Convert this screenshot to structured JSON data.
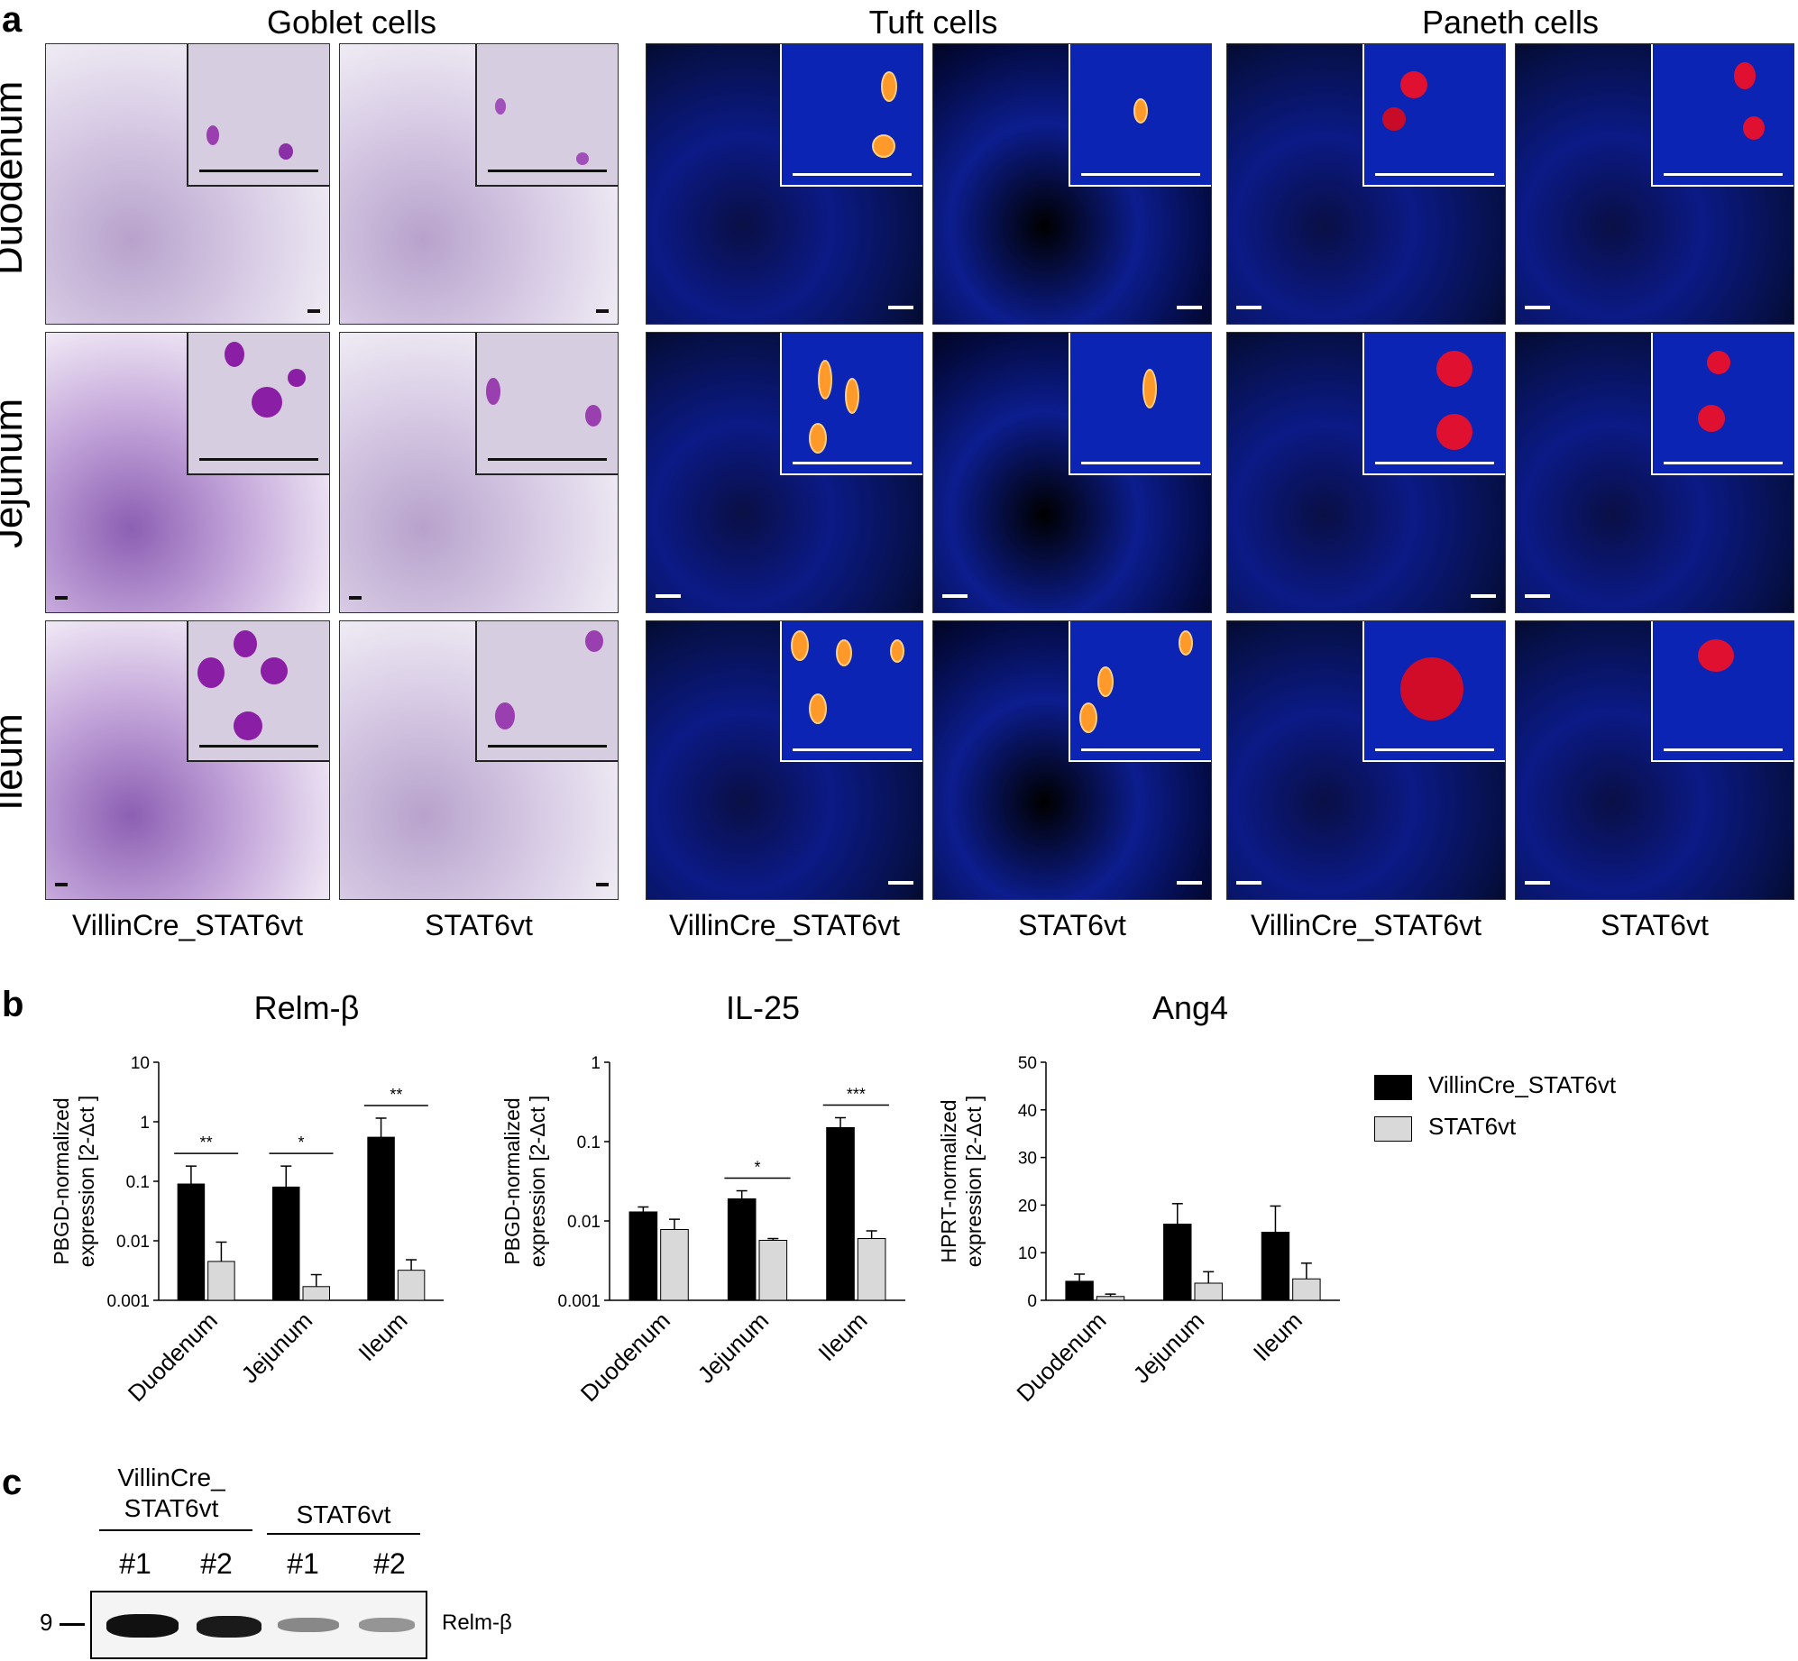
{
  "panel_a": {
    "letter": "a",
    "groups": [
      "Goblet cells",
      "Tuft cells",
      "Paneth cells"
    ],
    "rows": [
      "Duodenum",
      "Jejunum",
      "Ileum"
    ],
    "columns": [
      "VillinCre_STAT6vt",
      "STAT6vt",
      "VillinCre_STAT6vt",
      "STAT6vt",
      "VillinCre_STAT6vt",
      "STAT6vt"
    ]
  },
  "panel_b": {
    "letter": "b",
    "legend": [
      "VillinCre_STAT6vt",
      "STAT6vt"
    ]
  },
  "chart_data": [
    {
      "type": "bar",
      "title": "Relm-β",
      "ylabel": "PBGD-normalized expression [2-Δct ]",
      "yscale": "log",
      "ylim": [
        0.001,
        10
      ],
      "yticks": [
        "0.001",
        "0.01",
        "0.1",
        "1",
        "10"
      ],
      "categories": [
        "Duodenum",
        "Jejunum",
        "Ileum"
      ],
      "series": [
        {
          "name": "VillinCre_STAT6vt",
          "color": "#000000",
          "values": [
            0.09,
            0.08,
            0.55
          ],
          "errors_upper": [
            0.18,
            0.18,
            1.15
          ]
        },
        {
          "name": "STAT6vt",
          "color": "#d9d9d9",
          "values": [
            0.0045,
            0.0017,
            0.0032
          ],
          "errors_upper": [
            0.0095,
            0.0027,
            0.0048
          ]
        }
      ],
      "significance": [
        "**",
        "*",
        "**"
      ]
    },
    {
      "type": "bar",
      "title": "IL-25",
      "ylabel": "PBGD-normalized expression [2-Δct ]",
      "yscale": "log",
      "ylim": [
        0.001,
        1
      ],
      "yticks": [
        "0.001",
        "0.01",
        "0.1",
        "1"
      ],
      "categories": [
        "Duodenum",
        "Jejunum",
        "Ileum"
      ],
      "series": [
        {
          "name": "VillinCre_STAT6vt",
          "color": "#000000",
          "values": [
            0.013,
            0.019,
            0.15
          ],
          "errors_upper": [
            0.015,
            0.024,
            0.2
          ]
        },
        {
          "name": "STAT6vt",
          "color": "#d9d9d9",
          "values": [
            0.0078,
            0.0057,
            0.006
          ],
          "errors_upper": [
            0.0105,
            0.006,
            0.0075
          ]
        }
      ],
      "significance": [
        "",
        "*",
        "***"
      ]
    },
    {
      "type": "bar",
      "title": "Ang4",
      "ylabel": "HPRT-normalized expression [2-Δct ]",
      "yscale": "linear",
      "ylim": [
        0,
        50
      ],
      "yticks": [
        "0",
        "10",
        "20",
        "30",
        "40",
        "50"
      ],
      "categories": [
        "Duodenum",
        "Jejunum",
        "Ileum"
      ],
      "series": [
        {
          "name": "VillinCre_STAT6vt",
          "color": "#000000",
          "values": [
            4,
            16,
            14.3
          ],
          "errors_upper": [
            5.5,
            20.3,
            19.8
          ]
        },
        {
          "name": "STAT6vt",
          "color": "#d9d9d9",
          "values": [
            0.8,
            3.6,
            4.5
          ],
          "errors_upper": [
            1.3,
            6,
            7.8
          ]
        }
      ],
      "significance": [
        "",
        "",
        ""
      ]
    }
  ],
  "panel_c": {
    "letter": "c",
    "group1_line1": "VillinCre_",
    "group1_line2": "STAT6vt",
    "group2": "STAT6vt",
    "lanes": [
      "#1",
      "#2",
      "#1",
      "#2"
    ],
    "lane_intensity": [
      1.0,
      0.9,
      0.35,
      0.3
    ],
    "marker": "9",
    "band_label": "Relm-β"
  }
}
